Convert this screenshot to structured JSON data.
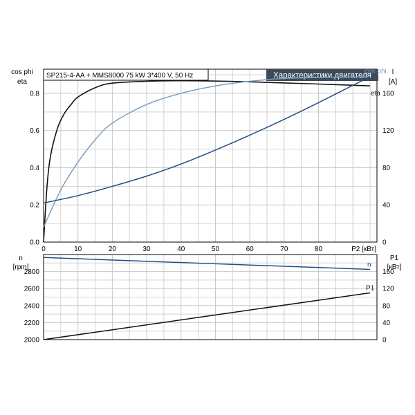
{
  "header": {
    "info": "SP215-4-AA + MMS8000   75 kW   3*400 V, 50 Hz",
    "badge": "Характеристики двигателя"
  },
  "colors": {
    "eta": "#111111",
    "cosphi": "#7b9fc0",
    "current": "#1f4e84",
    "speed": "#1f4e84",
    "p1": "#111111",
    "badge_bg": "#3d4a59"
  },
  "chart_data": [
    {
      "type": "line",
      "xlabel": "P2 [кВт]",
      "ylabel": [
        "cos phi",
        "eta"
      ],
      "y2label": [
        "I",
        "[A]"
      ],
      "xlim": [
        0,
        97
      ],
      "ylim": [
        0,
        0.93
      ],
      "y2lim": [
        0,
        186
      ],
      "xticks": [
        0,
        10,
        20,
        30,
        40,
        50,
        60,
        70,
        80
      ],
      "yticks": [
        0.0,
        0.2,
        0.4,
        0.6,
        0.8
      ],
      "y2ticks": [
        0,
        40,
        80,
        120,
        160
      ],
      "grid": true,
      "series": [
        {
          "name": "eta",
          "axis": "left",
          "x": [
            0,
            1,
            2,
            4,
            6,
            8,
            10,
            15,
            20,
            30,
            40,
            50,
            60,
            70,
            80,
            95
          ],
          "y": [
            0.0,
            0.3,
            0.46,
            0.61,
            0.69,
            0.74,
            0.78,
            0.83,
            0.855,
            0.865,
            0.868,
            0.866,
            0.862,
            0.856,
            0.85,
            0.84
          ]
        },
        {
          "name": "cos phi",
          "axis": "left",
          "x": [
            0,
            5,
            10,
            15,
            20,
            30,
            40,
            50,
            60,
            70,
            80,
            95
          ],
          "y": [
            0.08,
            0.28,
            0.43,
            0.55,
            0.64,
            0.74,
            0.8,
            0.84,
            0.865,
            0.88,
            0.885,
            0.89
          ]
        },
        {
          "name": "I",
          "axis": "right",
          "x": [
            0,
            10,
            20,
            30,
            40,
            50,
            60,
            70,
            80,
            95
          ],
          "y": [
            42,
            50,
            60,
            71,
            84,
            99,
            115,
            132,
            150,
            178
          ]
        }
      ]
    },
    {
      "type": "line",
      "ylabel": [
        "n",
        "[rpm]"
      ],
      "y2label": [
        "P1",
        "[кВт]"
      ],
      "xlim": [
        0,
        97
      ],
      "ylim": [
        2000,
        3000
      ],
      "y2lim": [
        0,
        200
      ],
      "yticks": [
        2000,
        2200,
        2400,
        2600,
        2800
      ],
      "y2ticks": [
        0,
        40,
        80,
        120,
        160
      ],
      "grid": true,
      "series": [
        {
          "name": "n",
          "axis": "left",
          "x": [
            0,
            95
          ],
          "y": [
            2965,
            2825
          ]
        },
        {
          "name": "P1",
          "axis": "right",
          "x": [
            0,
            95
          ],
          "y": [
            0,
            110
          ]
        }
      ]
    }
  ]
}
